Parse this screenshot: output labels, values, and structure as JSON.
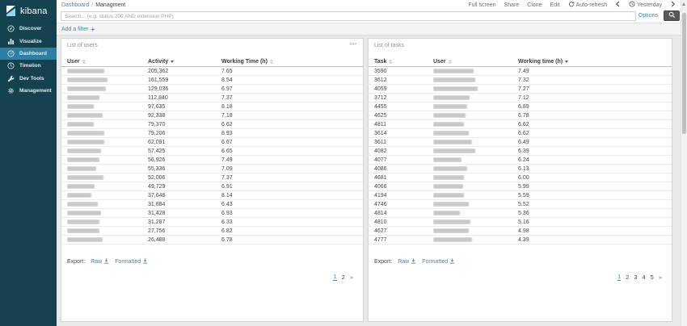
{
  "app": {
    "name": "kibana"
  },
  "colors": {
    "sidebar_bg": "#15424f",
    "sidebar_active": "#2e7fa3",
    "link_blue": "#4089ad",
    "logo_accent": "#8ed9ec",
    "search_button_bg": "#55585c"
  },
  "sidebar": {
    "items": [
      {
        "label": "Discover",
        "icon": "discover-icon",
        "active": false
      },
      {
        "label": "Visualize",
        "icon": "visualize-icon",
        "active": false
      },
      {
        "label": "Dashboard",
        "icon": "dashboard-icon",
        "active": true
      },
      {
        "label": "Timelion",
        "icon": "timelion-icon",
        "active": false
      },
      {
        "label": "Dev Tools",
        "icon": "devtools-icon",
        "active": false
      },
      {
        "label": "Management",
        "icon": "management-icon",
        "active": false
      }
    ]
  },
  "topbar": {
    "breadcrumb": {
      "section": "Dashboard",
      "separator": "/",
      "page": "Managment"
    },
    "actions": [
      "Full screen",
      "Share",
      "Clone",
      "Edit"
    ],
    "auto_refresh_label": "Auto-refresh",
    "time_range_label": "Yesterday"
  },
  "search_bar": {
    "placeholder": "Search... (e.g. status:200 AND extension:PHP)",
    "options_label": "Options"
  },
  "filter_bar": {
    "add_filter_label": "Add a filter",
    "plus": "+"
  },
  "users_panel": {
    "title": "List of users",
    "menu": "...",
    "columns": [
      {
        "label": "User",
        "sort": "both"
      },
      {
        "label": "Activity",
        "sort": "desc"
      },
      {
        "label": "Working Time (h)",
        "sort": "both"
      }
    ],
    "rows": [
      {
        "user_redacted_width": 46,
        "activity": "205,362",
        "working_time": "7.65"
      },
      {
        "user_redacted_width": 50,
        "activity": "161,559",
        "working_time": "8.54"
      },
      {
        "user_redacted_width": 48,
        "activity": "129,036",
        "working_time": "6.97"
      },
      {
        "user_redacted_width": 40,
        "activity": "112,840",
        "working_time": "7.37"
      },
      {
        "user_redacted_width": 33,
        "activity": "97,635",
        "working_time": "8.18"
      },
      {
        "user_redacted_width": 44,
        "activity": "92,338",
        "working_time": "7.18"
      },
      {
        "user_redacted_width": 33,
        "activity": "79,370",
        "working_time": "6.62"
      },
      {
        "user_redacted_width": 46,
        "activity": "79,206",
        "working_time": "8.93"
      },
      {
        "user_redacted_width": 46,
        "activity": "62,091",
        "working_time": "6.67"
      },
      {
        "user_redacted_width": 42,
        "activity": "57,425",
        "working_time": "6.65"
      },
      {
        "user_redacted_width": 40,
        "activity": "56,926",
        "working_time": "7.49"
      },
      {
        "user_redacted_width": 36,
        "activity": "55,336",
        "working_time": "7.09"
      },
      {
        "user_redacted_width": 45,
        "activity": "52,006",
        "working_time": "7.37"
      },
      {
        "user_redacted_width": 34,
        "activity": "49,729",
        "working_time": "6.91"
      },
      {
        "user_redacted_width": 30,
        "activity": "37,648",
        "working_time": "8.14"
      },
      {
        "user_redacted_width": 38,
        "activity": "31,884",
        "working_time": "6.43"
      },
      {
        "user_redacted_width": 42,
        "activity": "31,428",
        "working_time": "6.93"
      },
      {
        "user_redacted_width": 40,
        "activity": "31,287",
        "working_time": "6.33"
      },
      {
        "user_redacted_width": 40,
        "activity": "27,756",
        "working_time": "6.82"
      },
      {
        "user_redacted_width": 44,
        "activity": "26,488",
        "working_time": "6.78"
      }
    ],
    "export": {
      "label": "Export:",
      "raw": "Raw",
      "formatted": "Formatted"
    },
    "pagination": {
      "pages": [
        "1",
        "2"
      ],
      "current": "1",
      "next": "»"
    }
  },
  "tasks_panel": {
    "title": "List of tasks",
    "columns": [
      {
        "label": "Task",
        "sort": "both"
      },
      {
        "label": "User",
        "sort": "both"
      },
      {
        "label": "Working time (h)",
        "sort": "desc"
      }
    ],
    "rows": [
      {
        "task": "3590",
        "user_redacted_width": 50,
        "working_time": "7.49"
      },
      {
        "task": "3612",
        "user_redacted_width": 52,
        "working_time": "7.32"
      },
      {
        "task": "4059",
        "user_redacted_width": 55,
        "working_time": "7.27"
      },
      {
        "task": "3712",
        "user_redacted_width": 45,
        "working_time": "7.12"
      },
      {
        "task": "4455",
        "user_redacted_width": 42,
        "working_time": "6.89"
      },
      {
        "task": "4625",
        "user_redacted_width": 40,
        "working_time": "6.78"
      },
      {
        "task": "4811",
        "user_redacted_width": 38,
        "working_time": "6.62"
      },
      {
        "task": "3614",
        "user_redacted_width": 44,
        "working_time": "6.62"
      },
      {
        "task": "3611",
        "user_redacted_width": 48,
        "working_time": "6.49"
      },
      {
        "task": "4082",
        "user_redacted_width": 52,
        "working_time": "6.39"
      },
      {
        "task": "4077",
        "user_redacted_width": 35,
        "working_time": "6.24"
      },
      {
        "task": "4086",
        "user_redacted_width": 42,
        "working_time": "6.13"
      },
      {
        "task": "4681",
        "user_redacted_width": 38,
        "working_time": "6.00"
      },
      {
        "task": "4066",
        "user_redacted_width": 37,
        "working_time": "5.99"
      },
      {
        "task": "4194",
        "user_redacted_width": 38,
        "working_time": "5.59"
      },
      {
        "task": "4746",
        "user_redacted_width": 44,
        "working_time": "5.52"
      },
      {
        "task": "4814",
        "user_redacted_width": 33,
        "working_time": "5.36"
      },
      {
        "task": "4810",
        "user_redacted_width": 46,
        "working_time": "5.16"
      },
      {
        "task": "4627",
        "user_redacted_width": 44,
        "working_time": "4.98"
      },
      {
        "task": "4777",
        "user_redacted_width": 48,
        "working_time": "4.39"
      }
    ],
    "export": {
      "label": "Export:",
      "raw": "Raw",
      "formatted": "Formatted"
    },
    "pagination": {
      "pages": [
        "1",
        "2",
        "3",
        "4",
        "5"
      ],
      "current": "1",
      "next": "»"
    }
  }
}
